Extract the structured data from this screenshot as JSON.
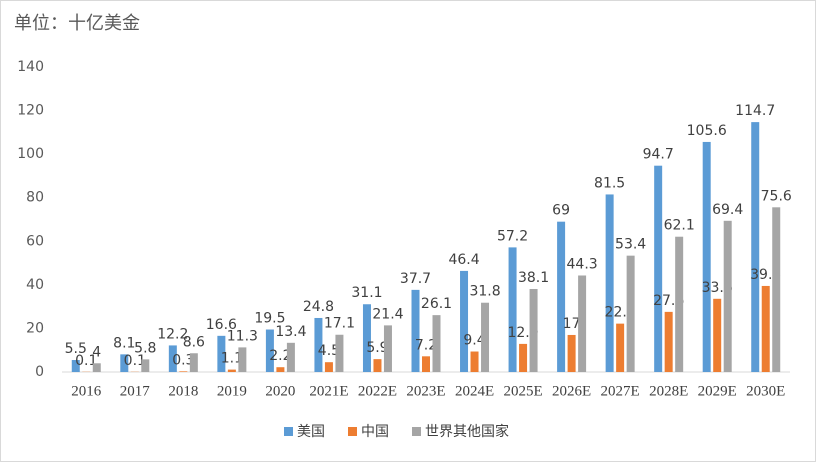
{
  "chart_data": {
    "type": "bar",
    "title": "单位：十亿美金",
    "categories": [
      "2016",
      "2017",
      "2018",
      "2019",
      "2020",
      "2021E",
      "2022E",
      "2023E",
      "2024E",
      "2025E",
      "2026E",
      "2027E",
      "2028E",
      "2029E",
      "2030E"
    ],
    "series": [
      {
        "name": "美国",
        "color": "#5b9bd5",
        "values": [
          5.5,
          8.1,
          12.2,
          16.6,
          19.5,
          24.8,
          31.1,
          37.7,
          46.4,
          57.2,
          69,
          81.5,
          94.7,
          105.6,
          114.7
        ]
      },
      {
        "name": "中国",
        "color": "#ed7d31",
        "values": [
          0.1,
          0.1,
          0.3,
          1.1,
          2.2,
          4.5,
          5.9,
          7.2,
          9.4,
          12.9,
          17,
          22.2,
          27.6,
          33.6,
          39.5
        ]
      },
      {
        "name": "世界其他国家",
        "color": "#a5a5a5",
        "values": [
          4,
          5.8,
          8.6,
          11.3,
          13.4,
          17.1,
          21.4,
          26.1,
          31.8,
          38.1,
          44.3,
          53.4,
          62.1,
          69.4,
          75.6
        ]
      }
    ],
    "ylim": [
      0,
      140
    ],
    "yticks": [
      0,
      20,
      40,
      60,
      80,
      100,
      120,
      140
    ],
    "grid": false,
    "legend": "bottom"
  }
}
